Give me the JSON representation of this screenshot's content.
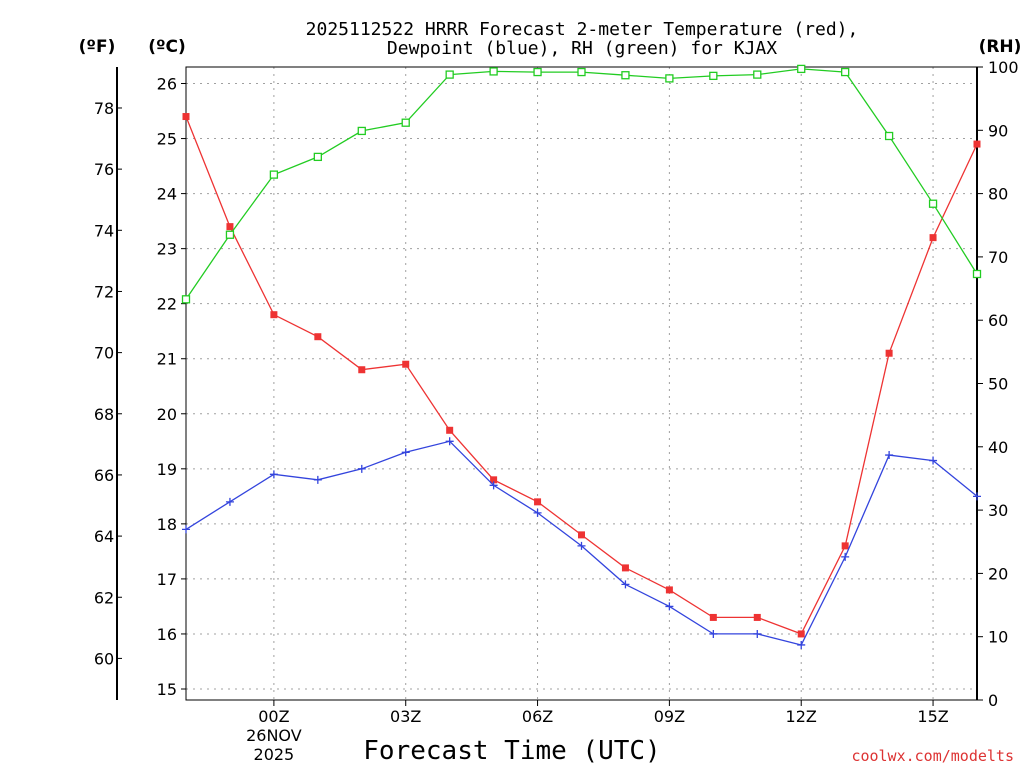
{
  "chart_data": {
    "type": "line",
    "title_line1": "2025112522 HRRR Forecast 2-meter Temperature (red),",
    "title_line2": "Dewpoint (blue), RH (green) for KJAX",
    "xlabel": "Forecast Time (UTC)",
    "credit": "coolwx.com/modelts",
    "units": {
      "fahrenheit": "(ºF)",
      "celsius": "(ºC)",
      "rh": "(RH)"
    },
    "x": [
      22,
      23,
      24,
      25,
      26,
      27,
      28,
      29,
      30,
      31,
      32,
      33,
      34,
      35,
      36,
      37,
      38,
      39,
      40
    ],
    "xlim": [
      22,
      40
    ],
    "x_ticks": [
      {
        "x": 24,
        "label": "00Z",
        "sub1": "26NOV",
        "sub2": "2025"
      },
      {
        "x": 27,
        "label": "03Z"
      },
      {
        "x": 30,
        "label": "06Z"
      },
      {
        "x": 33,
        "label": "09Z"
      },
      {
        "x": 36,
        "label": "12Z"
      },
      {
        "x": 39,
        "label": "15Z"
      }
    ],
    "ylim_c": [
      14.8,
      26.3
    ],
    "y_ticks_c": [
      "15",
      "16",
      "17",
      "18",
      "19",
      "20",
      "21",
      "22",
      "23",
      "24",
      "25",
      "26"
    ],
    "y_ticks_f": [
      "60",
      "62",
      "64",
      "66",
      "68",
      "70",
      "72",
      "74",
      "76",
      "78"
    ],
    "ylim_rh": [
      0,
      100
    ],
    "y_ticks_rh": [
      "0",
      "10",
      "20",
      "30",
      "40",
      "50",
      "60",
      "70",
      "80",
      "90",
      "100"
    ],
    "series": [
      {
        "name": "Temperature",
        "unit": "C",
        "color": "#ee3333",
        "marker": "filled-square",
        "values": [
          25.4,
          23.4,
          21.8,
          21.4,
          20.8,
          20.9,
          19.7,
          18.8,
          18.4,
          17.8,
          17.2,
          16.8,
          16.3,
          16.3,
          16.0,
          17.6,
          21.1,
          23.2,
          24.9
        ]
      },
      {
        "name": "Dewpoint",
        "unit": "C",
        "color": "#3344dd",
        "marker": "plus",
        "values": [
          17.9,
          18.4,
          18.9,
          18.8,
          19.0,
          19.3,
          19.5,
          18.7,
          18.2,
          17.6,
          16.9,
          16.5,
          16.0,
          16.0,
          15.8,
          17.4,
          19.25,
          19.15,
          18.5
        ]
      },
      {
        "name": "RH",
        "unit": "%",
        "color": "#22cc22",
        "marker": "open-square",
        "values": [
          63.3,
          73.5,
          83.0,
          85.8,
          89.9,
          91.2,
          98.8,
          99.3,
          99.2,
          99.2,
          98.7,
          98.2,
          98.6,
          98.8,
          99.7,
          99.2,
          89.1,
          78.4,
          67.3
        ]
      }
    ]
  }
}
